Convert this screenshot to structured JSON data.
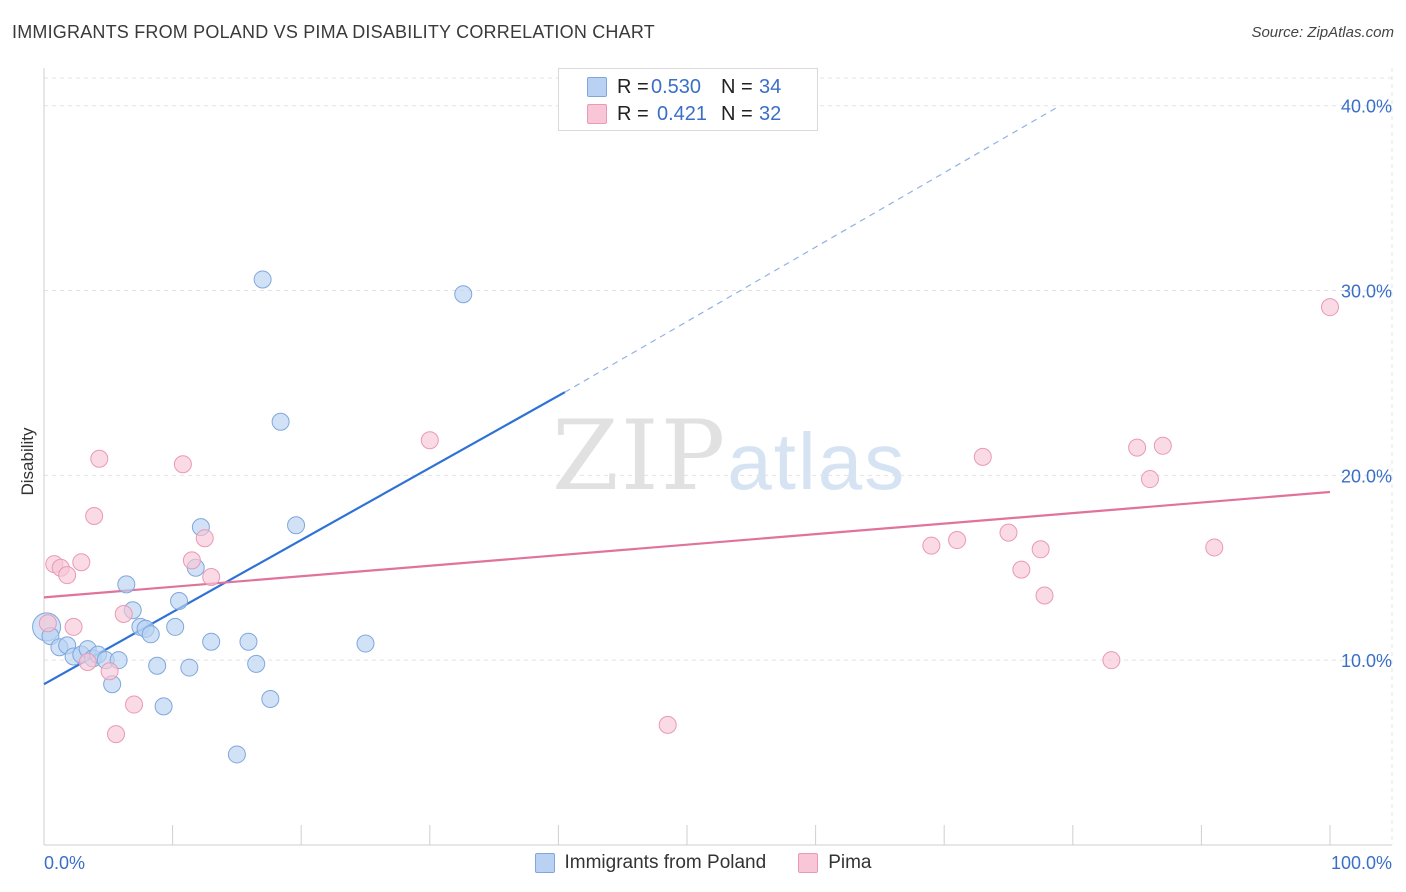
{
  "title": "IMMIGRANTS FROM POLAND VS PIMA DISABILITY CORRELATION CHART",
  "source": "Source: ZipAtlas.com",
  "watermark": {
    "zip": "ZIP",
    "atlas": "atlas"
  },
  "legend": {
    "rows": [
      {
        "r_label": "R =",
        "r_value": "0.530",
        "n_label": "N =",
        "n_value": "34"
      },
      {
        "r_label": "R =",
        "r_value": "0.421",
        "n_label": "N =",
        "n_value": "32"
      }
    ]
  },
  "bottom_legend": [
    "Immigrants from Poland",
    "Pima"
  ],
  "colors": {
    "blue_fill": "#b9d2f3",
    "blue_stroke": "#7fa7dc",
    "blue_line": "#2f72d6",
    "pink_fill": "#f8c6d6",
    "pink_stroke": "#e99ab4",
    "pink_line": "#e0739c",
    "tick_label": "#3a6fc8",
    "grid": "#e3e3e3"
  },
  "chart_data": {
    "type": "scatter",
    "title": "IMMIGRANTS FROM POLAND VS PIMA DISABILITY CORRELATION CHART",
    "xlabel": "",
    "ylabel": "Disability",
    "xlim": [
      0,
      100
    ],
    "ylim": [
      0,
      41.5
    ],
    "x_tick_labels": [
      "0.0%",
      "100.0%"
    ],
    "y_ticks": [
      10,
      20,
      30,
      40
    ],
    "y_tick_labels": [
      "10.0%",
      "20.0%",
      "30.0%",
      "40.0%"
    ],
    "grid": true,
    "legend_position": "top-center",
    "series": [
      {
        "name": "Immigrants from Poland",
        "color": "#7fa7dc",
        "r": 0.53,
        "n": 34,
        "trend": {
          "x0": 0,
          "y0": 8.7,
          "x1": 40.5,
          "y1": 24.5,
          "dashed_to_x": 79,
          "dashed_to_y": 40.0
        },
        "points": [
          [
            0.2,
            11.8
          ],
          [
            0.5,
            11.3
          ],
          [
            1.2,
            10.7
          ],
          [
            1.8,
            10.8
          ],
          [
            2.3,
            10.2
          ],
          [
            2.9,
            10.3
          ],
          [
            3.4,
            10.6
          ],
          [
            3.8,
            10.1
          ],
          [
            4.2,
            10.3
          ],
          [
            4.8,
            10.0
          ],
          [
            5.3,
            8.7
          ],
          [
            5.8,
            10.0
          ],
          [
            6.4,
            14.1
          ],
          [
            6.9,
            12.7
          ],
          [
            7.5,
            11.8
          ],
          [
            7.9,
            11.7
          ],
          [
            8.3,
            11.4
          ],
          [
            8.8,
            9.7
          ],
          [
            9.3,
            7.5
          ],
          [
            10.2,
            11.8
          ],
          [
            10.5,
            13.2
          ],
          [
            11.3,
            9.6
          ],
          [
            11.8,
            15.0
          ],
          [
            12.2,
            17.2
          ],
          [
            13.0,
            11.0
          ],
          [
            15.0,
            4.9
          ],
          [
            15.9,
            11.0
          ],
          [
            16.5,
            9.8
          ],
          [
            17.0,
            30.6
          ],
          [
            17.6,
            7.9
          ],
          [
            18.4,
            22.9
          ],
          [
            19.6,
            17.3
          ],
          [
            25.0,
            10.9
          ],
          [
            32.6,
            29.8
          ]
        ]
      },
      {
        "name": "Pima",
        "color": "#e99ab4",
        "r": 0.421,
        "n": 32,
        "trend": {
          "x0": 0,
          "y0": 13.4,
          "x1": 100,
          "y1": 19.1
        },
        "points": [
          [
            0.3,
            12.0
          ],
          [
            0.8,
            15.2
          ],
          [
            1.3,
            15.0
          ],
          [
            1.8,
            14.6
          ],
          [
            2.3,
            11.8
          ],
          [
            2.9,
            15.3
          ],
          [
            3.4,
            9.9
          ],
          [
            3.9,
            17.8
          ],
          [
            4.3,
            20.9
          ],
          [
            5.1,
            9.4
          ],
          [
            5.6,
            6.0
          ],
          [
            6.2,
            12.5
          ],
          [
            7.0,
            7.6
          ],
          [
            10.8,
            20.6
          ],
          [
            11.5,
            15.4
          ],
          [
            12.5,
            16.6
          ],
          [
            13.0,
            14.5
          ],
          [
            30.0,
            21.9
          ],
          [
            48.5,
            6.5
          ],
          [
            69.0,
            16.2
          ],
          [
            71.0,
            16.5
          ],
          [
            73.0,
            21.0
          ],
          [
            75.0,
            16.9
          ],
          [
            76.0,
            14.9
          ],
          [
            77.5,
            16.0
          ],
          [
            77.8,
            13.5
          ],
          [
            83.0,
            10.0
          ],
          [
            85.0,
            21.5
          ],
          [
            86.0,
            19.8
          ],
          [
            87.0,
            21.6
          ],
          [
            91.0,
            16.1
          ],
          [
            100.0,
            29.1
          ]
        ]
      }
    ]
  }
}
